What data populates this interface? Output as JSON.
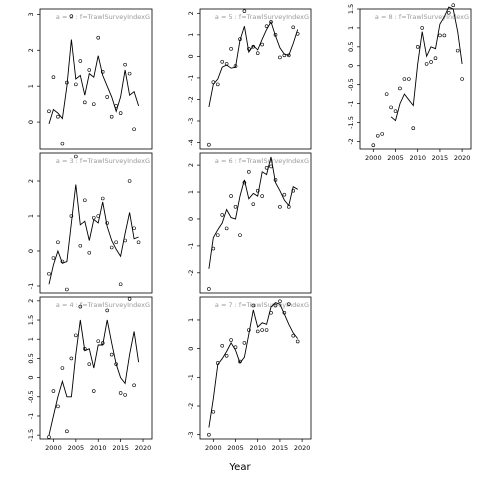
{
  "figure": {
    "xlabel": "Year"
  },
  "chart_data": [
    {
      "type": "line",
      "title": "a = 2  :  f=TrawlSurveyIndexG",
      "xlim": [
        1997,
        2022
      ],
      "ylim": [
        -0.75,
        3.15
      ],
      "yticks": [
        0,
        1,
        2,
        3
      ],
      "yticklabels": [
        "0",
        "1",
        "2",
        "3"
      ],
      "show_x_ticks": false,
      "line": [
        [
          1999,
          -0.05
        ],
        [
          2000,
          0.35
        ],
        [
          2001,
          0.25
        ],
        [
          2002,
          0.1
        ],
        [
          2003,
          1.0
        ],
        [
          2004,
          2.3
        ],
        [
          2005,
          1.2
        ],
        [
          2006,
          1.3
        ],
        [
          2007,
          0.75
        ],
        [
          2008,
          1.35
        ],
        [
          2009,
          1.25
        ],
        [
          2010,
          1.85
        ],
        [
          2011,
          1.3
        ],
        [
          2012,
          1.0
        ],
        [
          2013,
          0.7
        ],
        [
          2014,
          0.3
        ],
        [
          2015,
          0.7
        ],
        [
          2016,
          1.45
        ],
        [
          2017,
          0.75
        ],
        [
          2018,
          0.85
        ],
        [
          2019,
          0.45
        ]
      ],
      "points": [
        [
          1999,
          0.3
        ],
        [
          2000,
          1.25
        ],
        [
          2001,
          0.15
        ],
        [
          2002,
          -0.6
        ],
        [
          2003,
          1.1
        ],
        [
          2004,
          2.95
        ],
        [
          2005,
          1.05
        ],
        [
          2006,
          1.7
        ],
        [
          2007,
          0.55
        ],
        [
          2008,
          1.45
        ],
        [
          2009,
          0.5
        ],
        [
          2010,
          2.35
        ],
        [
          2011,
          1.4
        ],
        [
          2012,
          0.7
        ],
        [
          2013,
          0.15
        ],
        [
          2014,
          0.45
        ],
        [
          2015,
          0.25
        ],
        [
          2016,
          1.6
        ],
        [
          2017,
          1.35
        ],
        [
          2018,
          -0.2
        ]
      ]
    },
    {
      "type": "line",
      "title": "a = 3  :  f=TrawlSurveyIndexG",
      "xlim": [
        1997,
        2022
      ],
      "ylim": [
        -1.2,
        2.8
      ],
      "yticks": [
        -1,
        0,
        1,
        2
      ],
      "yticklabels": [
        "-1",
        "0",
        "1",
        "2"
      ],
      "show_x_ticks": false,
      "line": [
        [
          1999,
          -0.95
        ],
        [
          2000,
          -0.4
        ],
        [
          2001,
          0.0
        ],
        [
          2002,
          -0.35
        ],
        [
          2003,
          -0.3
        ],
        [
          2004,
          0.8
        ],
        [
          2005,
          1.9
        ],
        [
          2006,
          0.75
        ],
        [
          2007,
          0.85
        ],
        [
          2008,
          0.3
        ],
        [
          2009,
          0.9
        ],
        [
          2010,
          0.8
        ],
        [
          2011,
          1.4
        ],
        [
          2012,
          0.7
        ],
        [
          2013,
          0.3
        ],
        [
          2014,
          0.05
        ],
        [
          2015,
          -0.15
        ],
        [
          2016,
          0.5
        ],
        [
          2017,
          1.1
        ],
        [
          2018,
          0.35
        ],
        [
          2019,
          0.4
        ]
      ],
      "points": [
        [
          1999,
          -0.65
        ],
        [
          2000,
          -0.2
        ],
        [
          2001,
          0.25
        ],
        [
          2002,
          -0.3
        ],
        [
          2003,
          -1.1
        ],
        [
          2004,
          1.0
        ],
        [
          2005,
          2.7
        ],
        [
          2006,
          0.15
        ],
        [
          2007,
          1.45
        ],
        [
          2008,
          -0.05
        ],
        [
          2009,
          0.95
        ],
        [
          2010,
          1.0
        ],
        [
          2011,
          1.5
        ],
        [
          2012,
          0.8
        ],
        [
          2013,
          0.1
        ],
        [
          2014,
          0.25
        ],
        [
          2015,
          -0.95
        ],
        [
          2016,
          0.3
        ],
        [
          2017,
          2.0
        ],
        [
          2018,
          0.65
        ],
        [
          2019,
          0.25
        ]
      ]
    },
    {
      "type": "line",
      "title": "a = 4  :  f=TrawlSurveyIndexG",
      "xlim": [
        1997,
        2022
      ],
      "ylim": [
        -1.6,
        2.1
      ],
      "yticks": [
        -1.5,
        -1,
        -0.5,
        0,
        0.5,
        1,
        1.5,
        2
      ],
      "yticklabels": [
        "-1.5",
        "-1",
        "-0.5",
        "0",
        "0.5",
        "1",
        "1.5",
        "2"
      ],
      "show_x_ticks": true,
      "xticks": [
        2000,
        2005,
        2010,
        2015,
        2020
      ],
      "line": [
        [
          1999,
          -1.5
        ],
        [
          2000,
          -1.0
        ],
        [
          2001,
          -0.5
        ],
        [
          2002,
          -0.1
        ],
        [
          2003,
          -0.5
        ],
        [
          2004,
          -0.5
        ],
        [
          2005,
          0.6
        ],
        [
          2006,
          1.5
        ],
        [
          2007,
          0.7
        ],
        [
          2008,
          0.75
        ],
        [
          2009,
          0.25
        ],
        [
          2010,
          0.85
        ],
        [
          2011,
          0.85
        ],
        [
          2012,
          1.5
        ],
        [
          2013,
          0.9
        ],
        [
          2014,
          0.35
        ],
        [
          2015,
          0.0
        ],
        [
          2016,
          -0.15
        ],
        [
          2017,
          0.6
        ],
        [
          2018,
          1.2
        ],
        [
          2019,
          0.4
        ]
      ],
      "points": [
        [
          1999,
          -1.55
        ],
        [
          2000,
          -0.35
        ],
        [
          2001,
          -0.75
        ],
        [
          2002,
          0.25
        ],
        [
          2003,
          -1.4
        ],
        [
          2004,
          0.5
        ],
        [
          2005,
          1.1
        ],
        [
          2006,
          1.85
        ],
        [
          2007,
          0.75
        ],
        [
          2008,
          0.35
        ],
        [
          2009,
          -0.35
        ],
        [
          2010,
          0.95
        ],
        [
          2011,
          0.9
        ],
        [
          2012,
          1.75
        ],
        [
          2013,
          0.6
        ],
        [
          2014,
          0.35
        ],
        [
          2015,
          -0.4
        ],
        [
          2016,
          -0.45
        ],
        [
          2017,
          2.05
        ],
        [
          2018,
          -0.2
        ]
      ]
    },
    {
      "type": "line",
      "title": "a = 5  :  f=TrawlSurveyIndexG",
      "xlim": [
        1997,
        2022
      ],
      "ylim": [
        -4.3,
        2.2
      ],
      "yticks": [
        -4,
        -3,
        -2,
        -1,
        0,
        1,
        2
      ],
      "yticklabels": [
        "-4",
        "-3",
        "-2",
        "-1",
        "0",
        "1",
        "2"
      ],
      "show_x_ticks": false,
      "line": [
        [
          1999,
          -2.35
        ],
        [
          2000,
          -1.3
        ],
        [
          2001,
          -1.05
        ],
        [
          2002,
          -0.5
        ],
        [
          2003,
          -0.4
        ],
        [
          2004,
          -0.55
        ],
        [
          2005,
          -0.5
        ],
        [
          2006,
          0.75
        ],
        [
          2007,
          1.4
        ],
        [
          2008,
          0.2
        ],
        [
          2009,
          0.5
        ],
        [
          2010,
          0.3
        ],
        [
          2011,
          0.8
        ],
        [
          2012,
          1.25
        ],
        [
          2013,
          1.6
        ],
        [
          2014,
          0.95
        ],
        [
          2015,
          0.4
        ],
        [
          2016,
          0.1
        ],
        [
          2017,
          0.05
        ],
        [
          2018,
          0.6
        ],
        [
          2019,
          1.25
        ]
      ],
      "points": [
        [
          1999,
          -4.1
        ],
        [
          2000,
          -1.2
        ],
        [
          2001,
          -1.3
        ],
        [
          2002,
          -0.25
        ],
        [
          2003,
          -0.35
        ],
        [
          2004,
          0.35
        ],
        [
          2005,
          -0.45
        ],
        [
          2006,
          0.8
        ],
        [
          2007,
          2.1
        ],
        [
          2008,
          0.35
        ],
        [
          2009,
          0.45
        ],
        [
          2010,
          0.15
        ],
        [
          2011,
          0.55
        ],
        [
          2012,
          1.4
        ],
        [
          2013,
          1.6
        ],
        [
          2014,
          1.0
        ],
        [
          2015,
          -0.05
        ],
        [
          2016,
          0.05
        ],
        [
          2017,
          0.05
        ],
        [
          2018,
          1.35
        ],
        [
          2019,
          1.05
        ]
      ]
    },
    {
      "type": "line",
      "title": "a = 6  :  f=TrawlSurveyIndexG",
      "xlim": [
        1997,
        2022
      ],
      "ylim": [
        -2.75,
        2.45
      ],
      "yticks": [
        -2,
        -1,
        0,
        1,
        2
      ],
      "yticklabels": [
        "-2",
        "-1",
        "0",
        "1",
        "2"
      ],
      "show_x_ticks": false,
      "line": [
        [
          1999,
          -1.85
        ],
        [
          2000,
          -0.7
        ],
        [
          2001,
          -0.4
        ],
        [
          2002,
          -0.15
        ],
        [
          2003,
          0.35
        ],
        [
          2004,
          0.05
        ],
        [
          2005,
          0.0
        ],
        [
          2006,
          0.85
        ],
        [
          2007,
          1.45
        ],
        [
          2008,
          0.75
        ],
        [
          2009,
          0.95
        ],
        [
          2010,
          0.85
        ],
        [
          2011,
          1.75
        ],
        [
          2012,
          1.65
        ],
        [
          2013,
          2.3
        ],
        [
          2014,
          1.35
        ],
        [
          2015,
          1.05
        ],
        [
          2016,
          0.7
        ],
        [
          2017,
          0.5
        ],
        [
          2018,
          1.2
        ],
        [
          2019,
          1.1
        ]
      ],
      "points": [
        [
          1999,
          -2.6
        ],
        [
          2000,
          -1.1
        ],
        [
          2001,
          -0.6
        ],
        [
          2002,
          0.15
        ],
        [
          2003,
          -0.35
        ],
        [
          2004,
          0.85
        ],
        [
          2005,
          0.45
        ],
        [
          2006,
          -0.6
        ],
        [
          2007,
          1.35
        ],
        [
          2008,
          1.75
        ],
        [
          2009,
          0.55
        ],
        [
          2010,
          1.05
        ],
        [
          2011,
          0.85
        ],
        [
          2012,
          1.9
        ],
        [
          2013,
          1.95
        ],
        [
          2014,
          1.45
        ],
        [
          2015,
          0.45
        ],
        [
          2016,
          0.9
        ],
        [
          2017,
          0.45
        ],
        [
          2018,
          1.05
        ]
      ]
    },
    {
      "type": "line",
      "title": "a = 7  :  f=TrawlSurveyIndexG",
      "xlim": [
        1997,
        2022
      ],
      "ylim": [
        -3.15,
        1.8
      ],
      "yticks": [
        -3,
        -2,
        -1,
        0,
        1
      ],
      "yticklabels": [
        "-3",
        "-2",
        "-1",
        "0",
        "1"
      ],
      "show_x_ticks": true,
      "xticks": [
        2000,
        2005,
        2010,
        2015,
        2020
      ],
      "line": [
        [
          1999,
          -2.75
        ],
        [
          2000,
          -1.75
        ],
        [
          2001,
          -0.55
        ],
        [
          2002,
          -0.35
        ],
        [
          2003,
          -0.1
        ],
        [
          2004,
          0.2
        ],
        [
          2005,
          -0.05
        ],
        [
          2006,
          -0.5
        ],
        [
          2007,
          -0.3
        ],
        [
          2008,
          0.5
        ],
        [
          2009,
          1.35
        ],
        [
          2010,
          0.75
        ],
        [
          2011,
          0.9
        ],
        [
          2012,
          0.85
        ],
        [
          2013,
          1.45
        ],
        [
          2014,
          1.6
        ],
        [
          2015,
          1.55
        ],
        [
          2016,
          1.2
        ],
        [
          2017,
          0.85
        ],
        [
          2018,
          0.55
        ],
        [
          2019,
          0.35
        ]
      ],
      "points": [
        [
          1999,
          -3.0
        ],
        [
          2000,
          -2.2
        ],
        [
          2001,
          -0.5
        ],
        [
          2002,
          0.1
        ],
        [
          2003,
          -0.25
        ],
        [
          2004,
          0.3
        ],
        [
          2005,
          0.05
        ],
        [
          2006,
          -0.45
        ],
        [
          2007,
          0.2
        ],
        [
          2008,
          0.65
        ],
        [
          2009,
          1.5
        ],
        [
          2010,
          0.6
        ],
        [
          2011,
          0.65
        ],
        [
          2012,
          0.65
        ],
        [
          2013,
          1.25
        ],
        [
          2014,
          1.5
        ],
        [
          2015,
          1.65
        ],
        [
          2016,
          1.25
        ],
        [
          2017,
          1.55
        ],
        [
          2018,
          0.45
        ],
        [
          2019,
          0.25
        ]
      ]
    },
    {
      "type": "line",
      "title": "a = 8  :  f=TrawlSurveyIndexG",
      "xlim": [
        1997,
        2022
      ],
      "ylim": [
        -2.2,
        1.5
      ],
      "yticks": [
        -2,
        -1.5,
        -1,
        -0.5,
        0,
        0.5,
        1,
        1.5
      ],
      "yticklabels": [
        "-2",
        "-1.5",
        "-1",
        "-0.5",
        "0",
        "0.5",
        "1",
        "1.5"
      ],
      "show_x_ticks": true,
      "xticks": [
        2000,
        2005,
        2010,
        2015,
        2020
      ],
      "line": [
        [
          2004,
          -1.35
        ],
        [
          2005,
          -1.45
        ],
        [
          2006,
          -1.0
        ],
        [
          2007,
          -0.75
        ],
        [
          2008,
          -0.9
        ],
        [
          2009,
          -1.05
        ],
        [
          2010,
          0.05
        ],
        [
          2011,
          0.9
        ],
        [
          2012,
          0.25
        ],
        [
          2013,
          0.5
        ],
        [
          2014,
          0.45
        ],
        [
          2015,
          1.1
        ],
        [
          2016,
          1.3
        ],
        [
          2017,
          1.55
        ],
        [
          2018,
          1.5
        ],
        [
          2019,
          0.9
        ],
        [
          2020,
          0.05
        ]
      ],
      "points": [
        [
          2000,
          -2.1
        ],
        [
          2001,
          -1.85
        ],
        [
          2002,
          -1.8
        ],
        [
          2003,
          -0.75
        ],
        [
          2004,
          -1.1
        ],
        [
          2005,
          -1.2
        ],
        [
          2006,
          -0.6
        ],
        [
          2007,
          -0.35
        ],
        [
          2008,
          -0.35
        ],
        [
          2009,
          -1.65
        ],
        [
          2010,
          0.5
        ],
        [
          2011,
          1.0
        ],
        [
          2012,
          0.05
        ],
        [
          2013,
          0.1
        ],
        [
          2014,
          0.2
        ],
        [
          2015,
          0.8
        ],
        [
          2016,
          0.8
        ],
        [
          2017,
          1.4
        ],
        [
          2018,
          1.6
        ],
        [
          2019,
          0.4
        ],
        [
          2020,
          -0.35
        ]
      ]
    }
  ]
}
